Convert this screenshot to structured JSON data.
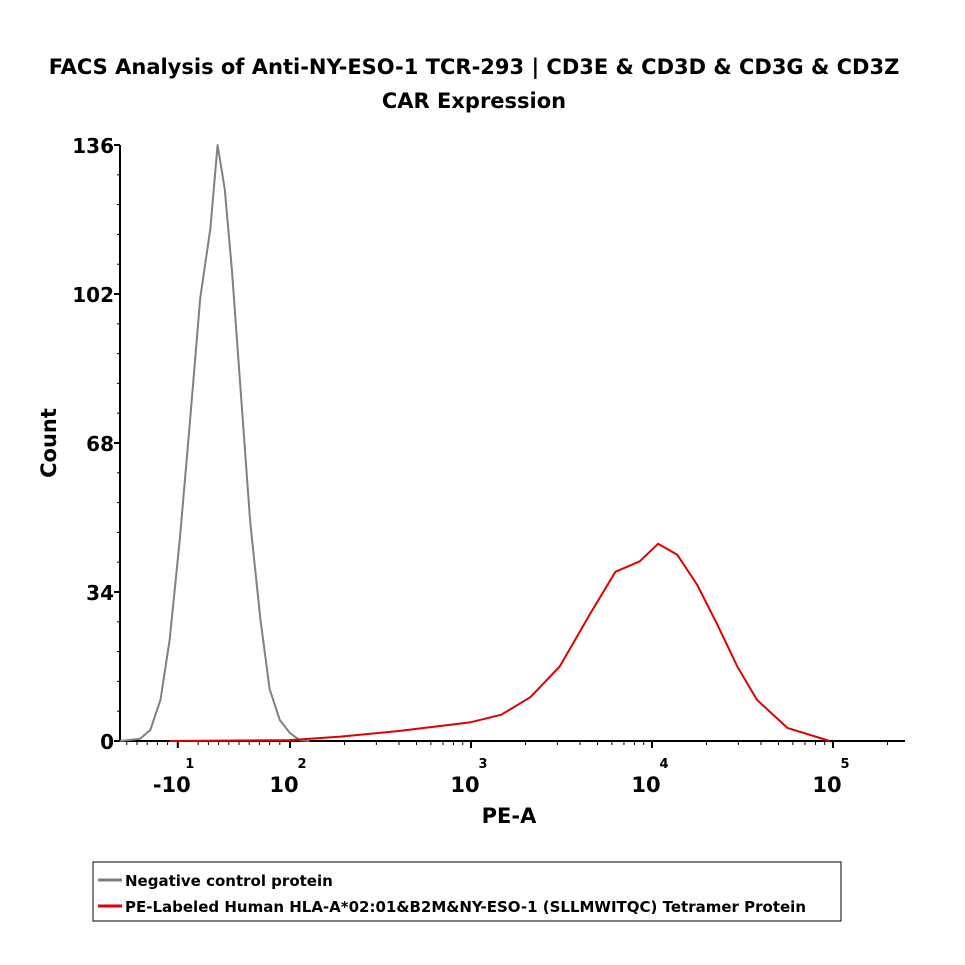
{
  "chart_data": {
    "type": "line",
    "title": "FACS Analysis of Anti-NY-ESO-1 TCR-293 | CD3E & CD3D & CD3G & CD3Z",
    "subtitle": "CAR Expression",
    "xlabel": "PE-A",
    "ylabel": "Count",
    "xscale": "biexponential",
    "xlim": [
      -67,
      250000
    ],
    "ylim": [
      0,
      136
    ],
    "yticks": [
      "0",
      "34",
      "68",
      "102",
      "136"
    ],
    "xticks": [
      {
        "value": -10,
        "base": "-10",
        "exp": "1"
      },
      {
        "value": 100,
        "base": "10",
        "exp": "2"
      },
      {
        "value": 1000,
        "base": "10",
        "exp": "3"
      },
      {
        "value": 10000,
        "base": "10",
        "exp": "4"
      },
      {
        "value": 100000,
        "base": "10",
        "exp": "5"
      }
    ],
    "grid": false,
    "legend_placement": "bottom",
    "series": [
      {
        "name": "Negative control protein",
        "color": "#808080",
        "x": [
          -67,
          -47,
          -37,
          -27,
          -18,
          -8,
          2,
          12,
          22,
          29,
          36,
          43,
          51,
          61,
          71,
          80,
          90,
          100,
          113,
          128
        ],
        "y": [
          0,
          0.5,
          2.5,
          9.4,
          23,
          46,
          73,
          101,
          117,
          136,
          126,
          107.5,
          82,
          50,
          27.8,
          11.9,
          4.8,
          1.8,
          0.2,
          0
        ]
      },
      {
        "name": "PE-Labeled Human HLA-A*02:01&B2M&NY-ESO-1 (SLLMWITQC) Tetramer Protein",
        "color": "#e00000",
        "x": [
          -18,
          100,
          190,
          405,
          1000,
          1470,
          2130,
          3090,
          4550,
          6280,
          8560,
          10800,
          13800,
          17800,
          23000,
          29600,
          38000,
          56000,
          96000
        ],
        "y": [
          0,
          0.2,
          1,
          2.3,
          4.3,
          6,
          10,
          17,
          29,
          38.6,
          41,
          45,
          42.5,
          35.6,
          26.5,
          17,
          9.4,
          3,
          0
        ]
      }
    ]
  }
}
